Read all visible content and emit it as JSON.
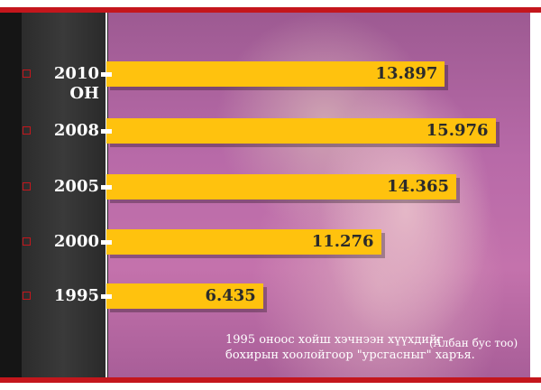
{
  "chart_data": {
    "type": "bar",
    "orientation": "horizontal",
    "categories": [
      "2010 ОН",
      "2008",
      "2005",
      "2000",
      "1995"
    ],
    "values": [
      "13.897",
      "15.976",
      "14.365",
      "11.276",
      "6.435"
    ],
    "numeric_values": [
      13.897,
      15.976,
      14.365,
      11.276,
      6.435
    ],
    "xlim": [
      0,
      17.4
    ],
    "grid": false,
    "legend": "none"
  },
  "caption": {
    "line1": "1995 оноос хойш хэчнээн хүүхдийг",
    "line2": "бохирын хоолойгоор \"урсгасныг\" харъя.",
    "note": "(Албан бус тоо)"
  },
  "colors": {
    "bar": "#ffc20e",
    "frame": "#c4161c",
    "panel": "#2b2b2b",
    "background": "#b86aa8"
  }
}
